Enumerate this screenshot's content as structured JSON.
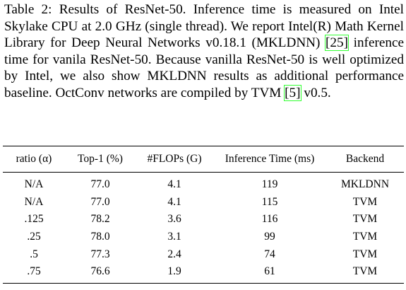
{
  "caption": {
    "parts": [
      "Table 2: Results of ResNet-50. Inference time is measured on Intel Skylake CPU at 2.0 GHz (single thread). We report Intel(R) Math Kernel Library for Deep Neural Networks v0.18.1 (MKLDNN) ",
      " inference time for vanila ResNet-50. Because vanilla ResNet-50 is well optimized by Intel, we also show MKLDNN results as additional performance baseline. OctConv networks are compiled by TVM ",
      " v0.5."
    ],
    "citations": [
      "[25]",
      "[5]"
    ]
  },
  "table": {
    "header": [
      "ratio (α)",
      "Top-1 (%)",
      "#FLOPs (G)",
      "Inference Time (ms)",
      "Backend"
    ],
    "rows": [
      [
        "N/A",
        "77.0",
        "4.1",
        "119",
        "MKLDNN"
      ],
      [
        "N/A",
        "77.0",
        "4.1",
        "115",
        "TVM"
      ],
      [
        ".125",
        "78.2",
        "3.6",
        "116",
        "TVM"
      ],
      [
        ".25",
        "78.0",
        "3.1",
        "99",
        "TVM"
      ],
      [
        ".5",
        "77.3",
        "2.4",
        "74",
        "TVM"
      ],
      [
        ".75",
        "76.6",
        "1.9",
        "61",
        "TVM"
      ]
    ]
  }
}
